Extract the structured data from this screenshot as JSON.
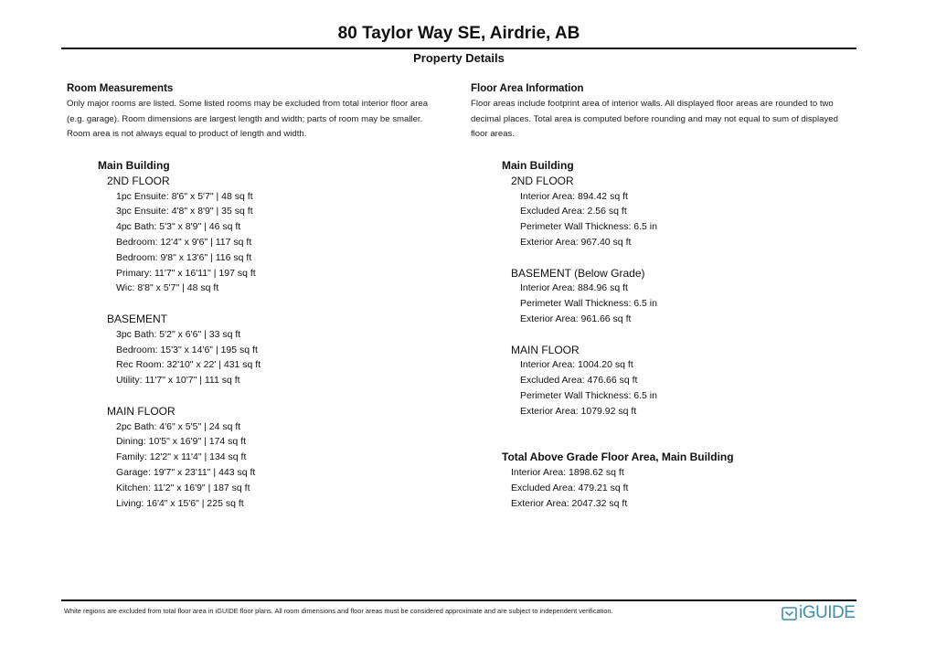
{
  "title": "80 Taylor Way SE, Airdrie, AB",
  "subtitle": "Property Details",
  "room_measurements": {
    "heading": "Room Measurements",
    "description": [
      "Only major rooms are listed. Some listed rooms may be excluded from total interior floor area",
      "(e.g. garage). Room dimensions are largest length and width; parts of room may be smaller.",
      "Room area is not always equal to product of length and width."
    ],
    "building": "Main Building",
    "floors": [
      {
        "name": "2ND FLOOR",
        "items": [
          "1pc Ensuite: 8'6\" x 5'7\" | 48 sq ft",
          "3pc Ensuite: 4'8\" x 8'9\" | 35 sq ft",
          "4pc Bath: 5'3\" x 8'9\" | 46 sq ft",
          "Bedroom: 12'4\" x 9'6\" | 117 sq ft",
          "Bedroom: 9'8\" x 13'6\" | 116 sq ft",
          "Primary: 11'7\" x 16'11\" | 197 sq ft",
          "Wic: 8'8\" x 5'7\" | 48 sq ft"
        ]
      },
      {
        "name": "BASEMENT",
        "items": [
          "3pc Bath: 5'2\" x 6'6\" | 33 sq ft",
          "Bedroom: 15'3\" x 14'6\" | 195 sq ft",
          "Rec Room: 32'10\" x 22' | 431 sq ft",
          "Utility: 11'7\" x 10'7\" | 111 sq ft"
        ]
      },
      {
        "name": "MAIN FLOOR",
        "items": [
          "2pc Bath: 4'6\" x 5'5\" | 24 sq ft",
          "Dining: 10'5\" x 16'9\" | 174 sq ft",
          "Family: 12'2\" x 11'4\" | 134 sq ft",
          "Garage: 19'7\" x 23'11\" | 443 sq ft",
          "Kitchen: 11'2\" x 16'9\" | 187 sq ft",
          "Living: 16'4\" x 15'6\" | 225 sq ft"
        ]
      }
    ]
  },
  "floor_area": {
    "heading": "Floor Area Information",
    "description": [
      "Floor areas include footprint area of interior walls. All displayed floor areas are rounded to two",
      "decimal places. Total area is computed before rounding and may not equal to sum of displayed",
      "floor areas."
    ],
    "building": "Main Building",
    "floors": [
      {
        "name": "2ND FLOOR",
        "items": [
          "Interior Area: 894.42 sq ft",
          "Excluded Area: 2.56 sq ft",
          "Perimeter Wall Thickness: 6.5 in",
          "Exterior Area: 967.40 sq ft"
        ]
      },
      {
        "name": "BASEMENT (Below Grade)",
        "items": [
          "Interior Area: 884.96 sq ft",
          "Perimeter Wall Thickness: 6.5 in",
          "Exterior Area: 961.66 sq ft"
        ]
      },
      {
        "name": "MAIN FLOOR",
        "items": [
          "Interior Area: 1004.20 sq ft",
          "Excluded Area: 476.66 sq ft",
          "Perimeter Wall Thickness: 6.5 in",
          "Exterior Area: 1079.92 sq ft"
        ]
      }
    ],
    "total": {
      "heading": "Total Above Grade Floor Area, Main Building",
      "items": [
        "Interior Area: 1898.62 sq ft",
        "Excluded Area: 479.21 sq ft",
        "Exterior Area: 2047.32 sq ft"
      ]
    }
  },
  "footer": {
    "disclaimer": "White regions are excluded from total floor area in iGUIDE floor plans. All room dimensions and floor areas must be considered approximate and are subject to independent verification.",
    "logo_text": "iGUIDE",
    "logo_color": "#3f8fa6"
  }
}
